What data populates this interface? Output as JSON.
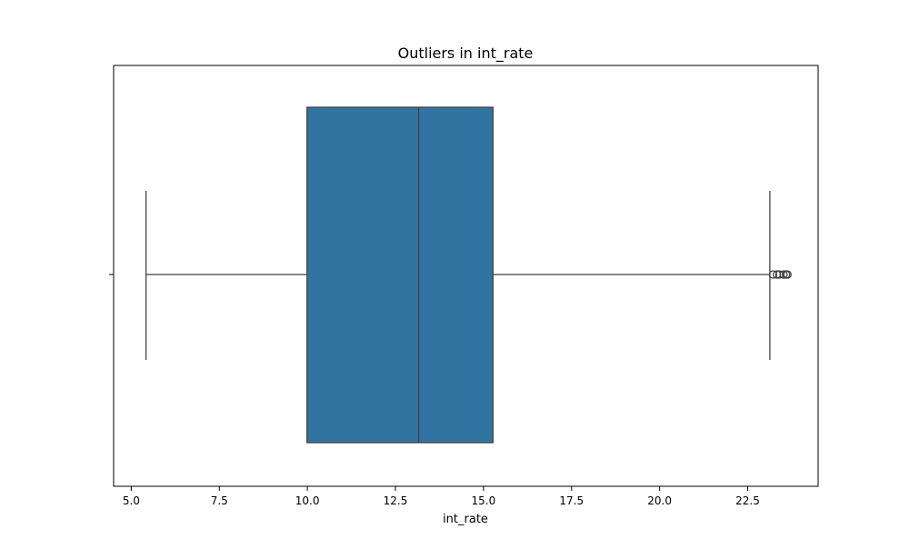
{
  "chart_data": {
    "type": "boxplot",
    "title": "Outliers in int_rate",
    "xlabel": "int_rate",
    "ylabel": "",
    "orientation": "horizontal",
    "xlim": [
      4.5,
      24.5
    ],
    "x_ticks": [
      5.0,
      7.5,
      10.0,
      12.5,
      15.0,
      17.5,
      20.0,
      22.5
    ],
    "x_tick_labels": [
      "5.0",
      "7.5",
      "10.0",
      "12.5",
      "15.0",
      "17.5",
      "20.0",
      "22.5"
    ],
    "grid": false,
    "box": {
      "whisker_low": 5.42,
      "q1": 9.99,
      "median": 13.16,
      "q3": 15.27,
      "whisker_high": 23.13,
      "outliers": [
        23.22,
        23.33,
        23.4,
        23.52,
        23.59,
        23.63
      ]
    },
    "colors": {
      "box_fill": "#3274a1",
      "line": "#3f3f3f"
    }
  }
}
